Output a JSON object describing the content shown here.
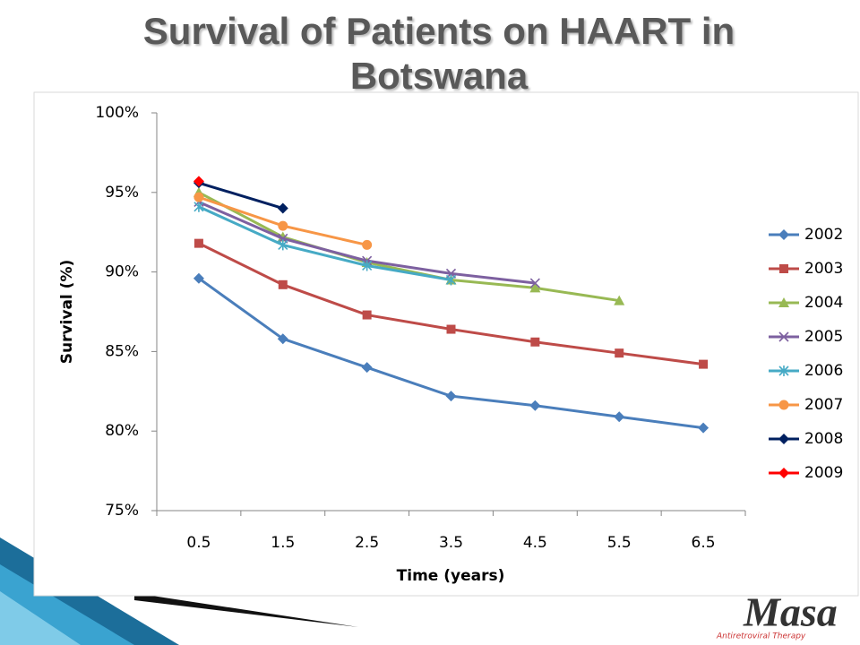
{
  "chart_data": {
    "type": "line",
    "title": "Survival of Patients on HAART in Botswana",
    "x_label": "Time (years)",
    "y_label": "Survival (%)",
    "categories": [
      "0.5",
      "1.5",
      "2.5",
      "3.5",
      "4.5",
      "5.5",
      "6.5"
    ],
    "ylim": [
      75,
      100
    ],
    "yticks": [
      {
        "value": 75,
        "label": "75%"
      },
      {
        "value": 80,
        "label": "80%"
      },
      {
        "value": 85,
        "label": "85%"
      },
      {
        "value": 90,
        "label": "90%"
      },
      {
        "value": 95,
        "label": "95%"
      },
      {
        "value": 100,
        "label": "100%"
      }
    ],
    "grid": false,
    "legend": "right",
    "series": [
      {
        "name": "2002",
        "color": "#4a7ebb",
        "marker": "diamond",
        "values": [
          89.6,
          85.8,
          84.0,
          82.2,
          81.6,
          80.9,
          80.2
        ]
      },
      {
        "name": "2003",
        "color": "#be4b48",
        "marker": "square",
        "values": [
          91.8,
          89.2,
          87.3,
          86.4,
          85.6,
          84.9,
          84.2
        ]
      },
      {
        "name": "2004",
        "color": "#98b954",
        "marker": "triangle",
        "values": [
          95.0,
          92.2,
          90.6,
          89.5,
          89.0,
          88.2,
          null
        ]
      },
      {
        "name": "2005",
        "color": "#7d60a0",
        "marker": "x",
        "values": [
          94.4,
          92.1,
          90.7,
          89.9,
          89.3,
          null,
          null
        ]
      },
      {
        "name": "2006",
        "color": "#46aac5",
        "marker": "star",
        "values": [
          94.1,
          91.7,
          90.4,
          89.5,
          null,
          null,
          null
        ]
      },
      {
        "name": "2007",
        "color": "#f79646",
        "marker": "circle",
        "values": [
          94.7,
          92.9,
          91.7,
          null,
          null,
          null,
          null
        ]
      },
      {
        "name": "2008",
        "color": "#002060",
        "marker": "diamond",
        "values": [
          95.6,
          94.0,
          null,
          null,
          null,
          null,
          null
        ]
      },
      {
        "name": "2009",
        "color": "#ff0000",
        "marker": "diamond",
        "values": [
          95.7,
          null,
          null,
          null,
          null,
          null,
          null
        ]
      }
    ]
  },
  "logo": {
    "name": "Masa",
    "tagline": "Antiretroviral Therapy"
  }
}
